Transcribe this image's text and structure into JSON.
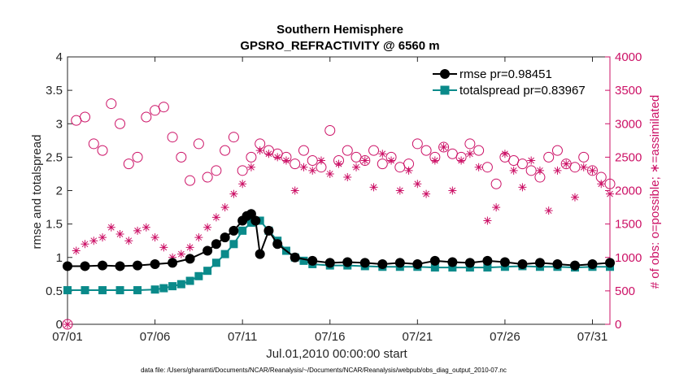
{
  "chart_data": {
    "type": "line",
    "title": "Southern Hemisphere",
    "subtitle": "GPSRO_REFRACTIVITY @ 6560 m",
    "xlabel": "Jul.01,2010 00:00:00 start",
    "ylabel": "rmse and totalspread",
    "y2label": "# of obs: o=possible; ∗=assimilated",
    "footnote": "data file: /Users/gharamti/Documents/NCAR/Reanalysis/~/Documents/NCAR/Reanalysis/webpub/obs_diag_output_2010-07.nc",
    "xlim": [
      0,
      31
    ],
    "ylim": [
      0,
      4
    ],
    "y2lim": [
      0,
      4000
    ],
    "x_ticks": [
      0,
      5,
      10,
      15,
      20,
      25,
      30
    ],
    "x_tick_labels": [
      "07/01",
      "07/06",
      "07/11",
      "07/16",
      "07/21",
      "07/26",
      "07/31"
    ],
    "y_ticks": [
      0,
      0.5,
      1,
      1.5,
      2,
      2.5,
      3,
      3.5,
      4
    ],
    "y_tick_labels": [
      "0",
      "0.5",
      "1",
      "1.5",
      "2",
      "2.5",
      "3",
      "3.5",
      "4"
    ],
    "y2_ticks": [
      0,
      500,
      1000,
      1500,
      2000,
      2500,
      3000,
      3500,
      4000
    ],
    "y2_tick_labels": [
      "0",
      "500",
      "1000",
      "1500",
      "2000",
      "2500",
      "3000",
      "3500",
      "4000"
    ],
    "legend_position": "top-right",
    "colors": {
      "rmse": "#000000",
      "totalspread": "#0a8a8a",
      "obs": "#cc1166"
    },
    "series": [
      {
        "name": "rmse pr=0.98451",
        "key": "rmse",
        "axis": "left",
        "x": [
          0.0,
          1.0,
          2.0,
          3.0,
          4.0,
          5.0,
          6.0,
          7.0,
          8.0,
          8.5,
          9.0,
          9.5,
          10.0,
          10.25,
          10.5,
          10.75,
          11.0,
          11.5,
          12.0,
          13.0,
          14.0,
          15.0,
          16.0,
          17.0,
          18.0,
          19.0,
          20.0,
          21.0,
          22.0,
          23.0,
          24.0,
          25.0,
          26.0,
          27.0,
          28.0,
          29.0,
          30.0,
          31.0
        ],
        "values": [
          0.87,
          0.87,
          0.88,
          0.87,
          0.88,
          0.9,
          0.92,
          0.98,
          1.1,
          1.2,
          1.3,
          1.4,
          1.55,
          1.62,
          1.65,
          1.55,
          1.05,
          1.4,
          1.2,
          1.0,
          0.95,
          0.92,
          0.93,
          0.92,
          0.9,
          0.92,
          0.9,
          0.95,
          0.93,
          0.92,
          0.95,
          0.93,
          0.9,
          0.92,
          0.9,
          0.88,
          0.9,
          0.92
        ]
      },
      {
        "name": "totalspread pr=0.83967",
        "key": "totalspread",
        "axis": "left",
        "x": [
          0.0,
          1.0,
          2.0,
          3.0,
          4.0,
          5.0,
          5.5,
          6.0,
          6.5,
          7.0,
          7.5,
          8.0,
          8.5,
          9.0,
          9.5,
          10.0,
          10.5,
          11.0,
          11.5,
          12.0,
          12.5,
          13.0,
          13.5,
          14.0,
          15.0,
          16.0,
          17.0,
          18.0,
          19.0,
          20.0,
          21.0,
          22.0,
          23.0,
          24.0,
          25.0,
          26.0,
          27.0,
          28.0,
          29.0,
          30.0,
          31.0
        ],
        "values": [
          0.51,
          0.51,
          0.51,
          0.51,
          0.51,
          0.52,
          0.54,
          0.57,
          0.6,
          0.65,
          0.72,
          0.8,
          0.92,
          1.05,
          1.2,
          1.4,
          1.52,
          1.55,
          1.4,
          1.25,
          1.1,
          1.0,
          0.95,
          0.9,
          0.88,
          0.88,
          0.87,
          0.86,
          0.86,
          0.86,
          0.85,
          0.85,
          0.85,
          0.85,
          0.86,
          0.87,
          0.86,
          0.86,
          0.85,
          0.86,
          0.86
        ]
      },
      {
        "name": "possible obs",
        "key": "possible",
        "axis": "right",
        "x": [
          0.0,
          0.5,
          1.0,
          1.5,
          2.0,
          2.5,
          3.0,
          3.5,
          4.0,
          4.5,
          5.0,
          5.5,
          6.0,
          6.5,
          7.0,
          7.5,
          8.0,
          8.5,
          9.0,
          9.5,
          10.0,
          10.5,
          11.0,
          11.5,
          12.0,
          12.5,
          13.0,
          13.5,
          14.0,
          14.5,
          15.0,
          15.5,
          16.0,
          16.5,
          17.0,
          17.5,
          18.0,
          18.5,
          19.0,
          19.5,
          20.0,
          20.5,
          21.0,
          21.5,
          22.0,
          22.5,
          23.0,
          23.5,
          24.0,
          24.5,
          25.0,
          25.5,
          26.0,
          26.5,
          27.0,
          27.5,
          28.0,
          28.5,
          29.0,
          29.5,
          30.0,
          30.5,
          31.0
        ],
        "values": [
          0,
          3050,
          3100,
          2700,
          2600,
          3300,
          3000,
          2400,
          2500,
          3100,
          3200,
          3250,
          2800,
          2500,
          2150,
          2700,
          2200,
          2300,
          2600,
          2800,
          2300,
          2500,
          2700,
          2600,
          2550,
          2500,
          2400,
          2600,
          2450,
          2350,
          2900,
          2450,
          2600,
          2500,
          2450,
          2600,
          2400,
          2500,
          2350,
          2400,
          2700,
          2600,
          2500,
          2650,
          2550,
          2500,
          2700,
          2600,
          2350,
          2100,
          2500,
          2450,
          2400,
          2300,
          2200,
          2500,
          2600,
          2400,
          2350,
          2500,
          2300,
          2200,
          2100
        ]
      },
      {
        "name": "assimilated obs",
        "key": "assimilated",
        "axis": "right",
        "x": [
          0.0,
          0.5,
          1.0,
          1.5,
          2.0,
          2.5,
          3.0,
          3.5,
          4.0,
          4.5,
          5.0,
          5.5,
          6.0,
          6.5,
          7.0,
          7.5,
          8.0,
          8.5,
          9.0,
          9.5,
          10.0,
          10.5,
          11.0,
          11.5,
          12.0,
          12.5,
          13.0,
          13.5,
          14.0,
          14.5,
          15.0,
          15.5,
          16.0,
          16.5,
          17.0,
          17.5,
          18.0,
          18.5,
          19.0,
          19.5,
          20.0,
          20.5,
          21.0,
          21.5,
          22.0,
          22.5,
          23.0,
          23.5,
          24.0,
          24.5,
          25.0,
          25.5,
          26.0,
          26.5,
          27.0,
          27.5,
          28.0,
          28.5,
          29.0,
          29.5,
          30.0,
          30.5,
          31.0
        ],
        "values": [
          0,
          1100,
          1200,
          1250,
          1300,
          1450,
          1350,
          1250,
          1400,
          1450,
          1300,
          1150,
          1000,
          1050,
          1150,
          1300,
          1450,
          1600,
          1750,
          1950,
          2100,
          2350,
          2600,
          2550,
          2500,
          2450,
          2000,
          2350,
          2300,
          2450,
          2250,
          2400,
          2200,
          2350,
          2450,
          2050,
          2550,
          2450,
          2000,
          2300,
          2100,
          1950,
          2450,
          2650,
          2000,
          2450,
          2550,
          2350,
          1550,
          1750,
          2550,
          2300,
          2050,
          2450,
          2300,
          1700,
          2300,
          2400,
          1900,
          2350,
          2300,
          2100,
          1950
        ]
      }
    ]
  }
}
